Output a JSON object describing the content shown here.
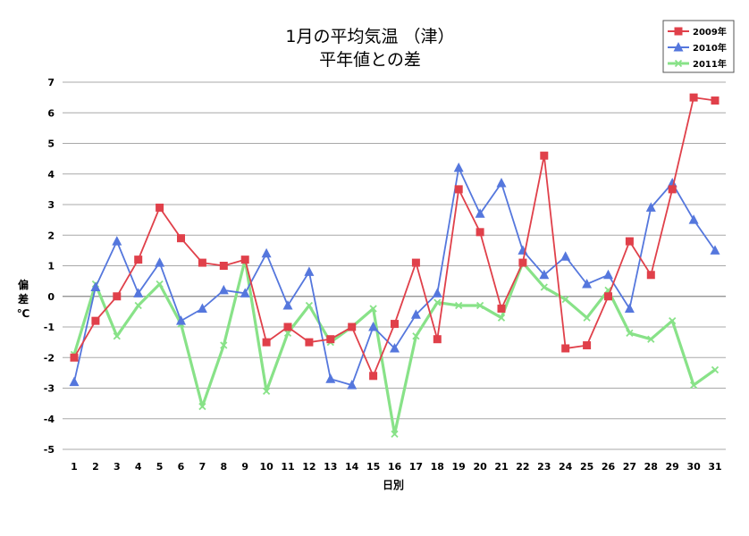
{
  "chart_data": {
    "type": "line",
    "title": "1月の平均気温 （津）",
    "subtitle": "平年値との差",
    "xlabel": "日別",
    "ylabel": "偏差℃",
    "ylabel_lines": [
      "偏",
      "差",
      "℃"
    ],
    "ylim": [
      -5,
      7
    ],
    "yticks": [
      7,
      6,
      5,
      4,
      3,
      2,
      1,
      0,
      -1,
      -2,
      -3,
      -4,
      -5
    ],
    "grid": true,
    "legend_position": "top-right",
    "categories": [
      1,
      2,
      3,
      4,
      5,
      6,
      7,
      8,
      9,
      10,
      11,
      12,
      13,
      14,
      15,
      16,
      17,
      18,
      19,
      20,
      21,
      22,
      23,
      24,
      25,
      26,
      27,
      28,
      29,
      30,
      31
    ],
    "series": [
      {
        "name": "2009年",
        "color": "#e0404a",
        "marker": "square",
        "values": [
          -2.0,
          -0.8,
          0.0,
          1.2,
          2.9,
          1.9,
          1.1,
          1.0,
          1.2,
          -1.5,
          -1.0,
          -1.5,
          -1.4,
          -1.0,
          -2.6,
          -0.9,
          1.1,
          -1.4,
          3.5,
          2.1,
          -0.4,
          1.1,
          4.6,
          -1.7,
          -1.6,
          0.0,
          1.8,
          0.7,
          3.5,
          6.5,
          6.4
        ]
      },
      {
        "name": "2010年",
        "color": "#5577dd",
        "marker": "triangle",
        "values": [
          -2.8,
          0.3,
          1.8,
          0.1,
          1.1,
          -0.8,
          -0.4,
          0.2,
          0.1,
          1.4,
          -0.3,
          0.8,
          -2.7,
          -2.9,
          -1.0,
          -1.7,
          -0.6,
          0.1,
          4.2,
          2.7,
          3.7,
          1.5,
          0.7,
          1.3,
          0.4,
          0.7,
          -0.4,
          2.9,
          3.7,
          2.5,
          1.5
        ]
      },
      {
        "name": "2011年",
        "color": "#88e288",
        "marker": "cross",
        "values": [
          -1.9,
          0.4,
          -1.3,
          -0.3,
          0.4,
          -0.9,
          -3.6,
          -1.6,
          1.2,
          -3.1,
          -1.2,
          -0.3,
          -1.5,
          -1.0,
          -0.4,
          -4.5,
          -1.3,
          -0.2,
          -0.3,
          -0.3,
          -0.7,
          1.1,
          0.3,
          -0.1,
          -0.7,
          0.2,
          -1.2,
          -1.4,
          -0.8,
          -2.9,
          -2.4
        ]
      }
    ]
  }
}
